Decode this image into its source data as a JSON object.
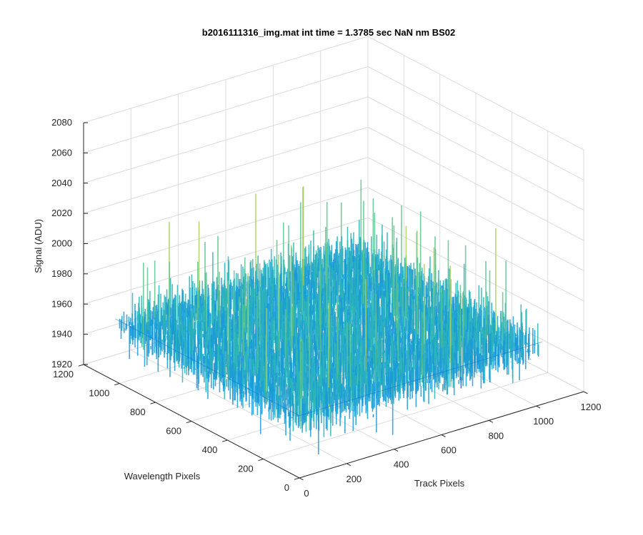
{
  "chart_data": {
    "type": "surface",
    "title": "b2016111316_img.mat int time = 1.3785 sec  NaN nm BS02",
    "xlabel": "Track Pixels",
    "ylabel": "Wavelength Pixels",
    "zlabel": "Signal (ADU)",
    "xlim": [
      0,
      1200
    ],
    "ylim": [
      0,
      1200
    ],
    "zlim": [
      1920,
      2080
    ],
    "x_ticks": [
      "0",
      "200",
      "400",
      "600",
      "800",
      "1000",
      "1200"
    ],
    "y_ticks": [
      "0",
      "200",
      "400",
      "600",
      "800",
      "1000",
      "1200"
    ],
    "z_ticks": [
      "1920",
      "1940",
      "1960",
      "1980",
      "2000",
      "2020",
      "2040",
      "2060",
      "2080"
    ],
    "surface": {
      "x_range": [
        0,
        1024
      ],
      "y_range": [
        0,
        1024
      ],
      "signal_mean": 1965,
      "signal_min": 1925,
      "signal_max": 2062,
      "colormap": [
        "#0a6fd6",
        "#1a9bd6",
        "#2bb5b8",
        "#5cc48e",
        "#a8d05c",
        "#e0d44a"
      ]
    },
    "grid": true
  }
}
